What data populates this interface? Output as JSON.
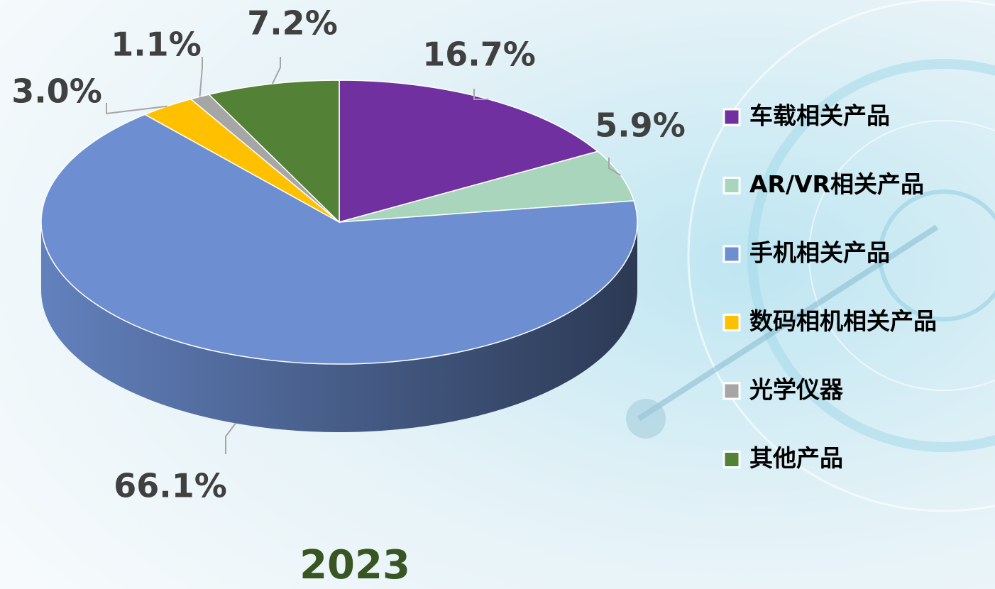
{
  "chart_data": {
    "type": "pie",
    "title": "2023",
    "categories": [
      "车载相关产品",
      "AR/VR相关产品",
      "手机相关产品",
      "数码相机相关产品",
      "光学仪器",
      "其他产品"
    ],
    "values": [
      16.7,
      5.9,
      66.1,
      3.0,
      1.1,
      7.2
    ],
    "value_labels": [
      "16.7%",
      "5.9%",
      "66.1%",
      "3.0%",
      "1.1%",
      "7.2%"
    ],
    "colors": [
      "#7030a0",
      "#a9d5bc",
      "#6d8fd2",
      "#ffc000",
      "#a6a6a6",
      "#538135"
    ],
    "legend": "right"
  }
}
